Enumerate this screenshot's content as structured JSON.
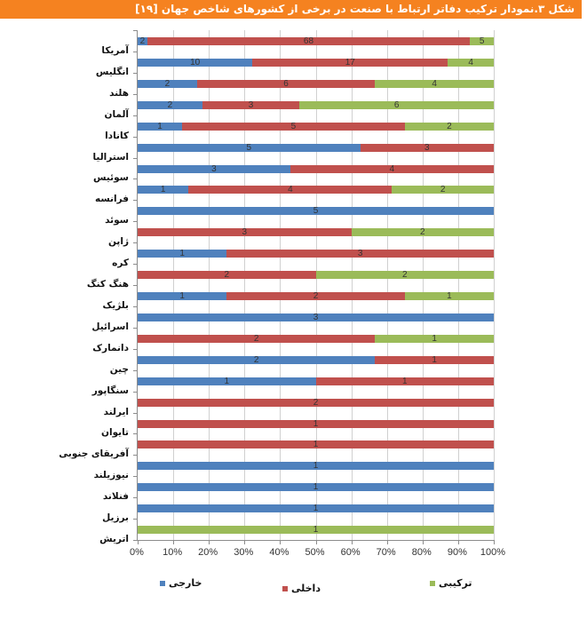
{
  "header": {
    "title": "شکل ۳.نمودار ترکیب دفاتر ارتباط با صنعت در برخی از کشورهای شاخص جهان [۱۹]",
    "background_color": "#F58220"
  },
  "legend": [
    {
      "key": "foreign",
      "label": "خارجی",
      "color": "#4F81BD"
    },
    {
      "key": "domestic",
      "label": "داخلی",
      "color": "#C0504D"
    },
    {
      "key": "combined",
      "label": "ترکیبی",
      "color": "#9BBB59"
    }
  ],
  "x_axis": {
    "ticks": [
      "0%",
      "10%",
      "20%",
      "30%",
      "40%",
      "50%",
      "60%",
      "70%",
      "80%",
      "90%",
      "100%"
    ]
  },
  "chart_data": {
    "type": "bar",
    "orientation": "horizontal",
    "stacked": "percent",
    "title": "شکل ۳.نمودار ترکیب دفاتر ارتباط با صنعت در برخی از کشورهای شاخص جهان [۱۹]",
    "xlabel": "",
    "ylabel": "",
    "xlim": [
      0,
      100
    ],
    "x_tick_labels": [
      "0%",
      "10%",
      "20%",
      "30%",
      "40%",
      "50%",
      "60%",
      "70%",
      "80%",
      "90%",
      "100%"
    ],
    "grid": true,
    "legend_position": "bottom",
    "categories": [
      "آمریکا",
      "انگلیس",
      "هلند",
      "آلمان",
      "کانادا",
      "استرالیا",
      "سوئیس",
      "فرانسه",
      "سوئد",
      "ژاپن",
      "کره",
      "هنگ کنگ",
      "بلژیک",
      "اسرائیل",
      "دانمارک",
      "چین",
      "سنگاپور",
      "ایرلند",
      "تایوان",
      "آفریقای جنوبی",
      "نیوزیلند",
      "فنلاند",
      "برزیل",
      "اتریش"
    ],
    "series": [
      {
        "name": "خارجی",
        "color": "#4F81BD",
        "values": [
          2,
          10,
          2,
          2,
          1,
          5,
          3,
          1,
          5,
          0,
          1,
          0,
          1,
          3,
          0,
          2,
          1,
          0,
          0,
          0,
          1,
          1,
          1,
          0
        ]
      },
      {
        "name": "داخلی",
        "color": "#C0504D",
        "values": [
          68,
          17,
          6,
          3,
          5,
          3,
          4,
          4,
          0,
          3,
          3,
          2,
          2,
          0,
          2,
          1,
          1,
          2,
          1,
          1,
          0,
          0,
          0,
          0
        ]
      },
      {
        "name": "ترکیبی",
        "color": "#9BBB59",
        "values": [
          5,
          4,
          4,
          6,
          2,
          0,
          0,
          2,
          0,
          2,
          0,
          2,
          1,
          0,
          1,
          0,
          0,
          0,
          0,
          0,
          0,
          0,
          0,
          1
        ]
      }
    ]
  }
}
